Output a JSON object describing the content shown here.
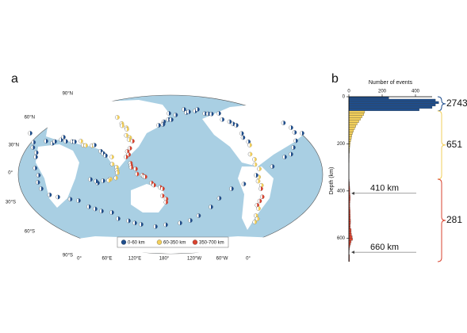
{
  "panel_a": {
    "label": "a",
    "lat_labels": [
      "90°N",
      "60°N",
      "30°N",
      "0°",
      "30°S",
      "60°S",
      "90°S"
    ],
    "lon_labels": [
      "0°",
      "60°E",
      "120°E",
      "180°",
      "120°W",
      "60°W",
      "0°"
    ]
  },
  "chart_data": {
    "type": "histogram",
    "panel_label": "b",
    "orientation": "horizontal",
    "xlabel": "Number of events",
    "ylabel": "Depth (km)",
    "xlim": [
      0,
      500
    ],
    "xticks": [
      0,
      200,
      400
    ],
    "ylim": [
      0,
      700
    ],
    "yticks": [
      0,
      200,
      400,
      600
    ],
    "series": [
      {
        "name": "0-60 km",
        "color": "#1f4e8c",
        "total": 2743,
        "bins": [
          0,
          10,
          20,
          30,
          40,
          50,
          60
        ],
        "values": [
          240,
          520,
          540,
          520,
          500,
          423
        ]
      },
      {
        "name": "60-350 km",
        "color": "#f2cf5b",
        "total": 651,
        "bins": [
          60,
          70,
          80,
          90,
          100,
          110,
          120,
          130,
          140,
          150,
          160,
          170,
          180,
          190,
          200,
          210,
          220,
          230,
          240,
          250,
          260,
          270,
          280,
          290,
          300,
          310,
          320,
          330,
          340,
          350
        ],
        "values": [
          95,
          90,
          80,
          70,
          60,
          50,
          42,
          35,
          28,
          22,
          18,
          15,
          12,
          9,
          7,
          5,
          4,
          3,
          2,
          2,
          1,
          1,
          0,
          0,
          0,
          0,
          0,
          0,
          0
        ]
      },
      {
        "name": "350-700 km",
        "color": "#d9432f",
        "total": 281,
        "bins": [
          350,
          360,
          370,
          380,
          390,
          400,
          410,
          420,
          430,
          440,
          450,
          460,
          470,
          480,
          490,
          500,
          510,
          520,
          530,
          540,
          550,
          560,
          570,
          580,
          590,
          600,
          610,
          620,
          630,
          640,
          650,
          660,
          670,
          680,
          690,
          700
        ],
        "values": [
          2,
          3,
          4,
          5,
          6,
          6,
          7,
          8,
          8,
          7,
          6,
          6,
          7,
          8,
          8,
          9,
          9,
          10,
          10,
          9,
          9,
          14,
          14,
          16,
          20,
          22,
          14,
          10,
          6,
          3,
          2,
          1,
          4,
          4,
          4
        ]
      }
    ],
    "annotations": [
      {
        "label": "410  km",
        "y": 410
      },
      {
        "label": "660  km",
        "y": 660
      }
    ]
  }
}
